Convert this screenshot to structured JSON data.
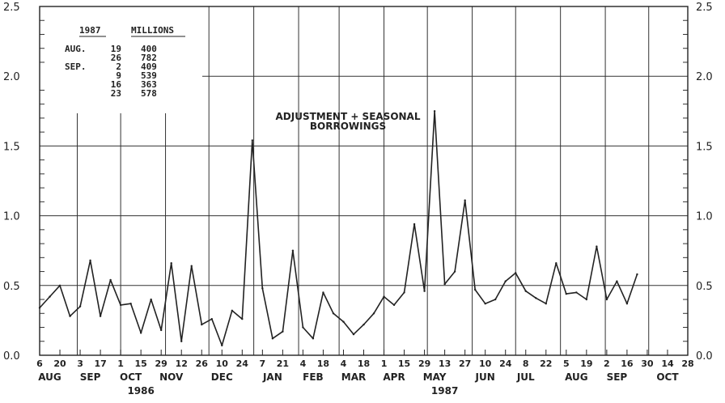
{
  "chart_data": {
    "type": "line",
    "title": "ADJUSTMENT + SEASONAL BORROWINGS",
    "annotation_lines": [
      "ADJUSTMENT + SEASONAL",
      "BORROWINGS"
    ],
    "ylim": [
      0.0,
      2.5
    ],
    "y_ticks": [
      "0.0",
      "0.5",
      "1.0",
      "1.5",
      "2.0",
      "2.5"
    ],
    "grid": true,
    "x_start": "1986-08-06",
    "x_end": "1987-10-28",
    "day_labels": [
      {
        "date": "1986-08-06",
        "label": "6"
      },
      {
        "date": "1986-08-20",
        "label": "20"
      },
      {
        "date": "1986-09-03",
        "label": "3"
      },
      {
        "date": "1986-09-17",
        "label": "17"
      },
      {
        "date": "1986-10-01",
        "label": "1"
      },
      {
        "date": "1986-10-15",
        "label": "15"
      },
      {
        "date": "1986-10-29",
        "label": "29"
      },
      {
        "date": "1986-11-12",
        "label": "12"
      },
      {
        "date": "1986-11-26",
        "label": "26"
      },
      {
        "date": "1986-12-10",
        "label": "10"
      },
      {
        "date": "1986-12-24",
        "label": "24"
      },
      {
        "date": "1987-01-07",
        "label": "7"
      },
      {
        "date": "1987-01-21",
        "label": "21"
      },
      {
        "date": "1987-02-04",
        "label": "4"
      },
      {
        "date": "1987-02-18",
        "label": "18"
      },
      {
        "date": "1987-03-04",
        "label": "4"
      },
      {
        "date": "1987-03-18",
        "label": "18"
      },
      {
        "date": "1987-04-01",
        "label": "1"
      },
      {
        "date": "1987-04-15",
        "label": "15"
      },
      {
        "date": "1987-04-29",
        "label": "29"
      },
      {
        "date": "1987-05-13",
        "label": "13"
      },
      {
        "date": "1987-05-27",
        "label": "27"
      },
      {
        "date": "1987-06-10",
        "label": "10"
      },
      {
        "date": "1987-06-24",
        "label": "24"
      },
      {
        "date": "1987-07-08",
        "label": "8"
      },
      {
        "date": "1987-07-22",
        "label": "22"
      },
      {
        "date": "1987-08-05",
        "label": "5"
      },
      {
        "date": "1987-08-19",
        "label": "19"
      },
      {
        "date": "1987-09-02",
        "label": "2"
      },
      {
        "date": "1987-09-16",
        "label": "16"
      },
      {
        "date": "1987-09-30",
        "label": "30"
      },
      {
        "date": "1987-10-14",
        "label": "14"
      },
      {
        "date": "1987-10-28",
        "label": "28"
      }
    ],
    "month_labels": [
      {
        "date": "1986-08-13",
        "label": "AUG"
      },
      {
        "date": "1986-09-10",
        "label": "SEP"
      },
      {
        "date": "1986-10-08",
        "label": "OCT"
      },
      {
        "date": "1986-11-05",
        "label": "NOV"
      },
      {
        "date": "1986-12-10",
        "label": "DEC"
      },
      {
        "date": "1987-01-14",
        "label": "JAN"
      },
      {
        "date": "1987-02-11",
        "label": "FEB"
      },
      {
        "date": "1987-03-11",
        "label": "MAR"
      },
      {
        "date": "1987-04-08",
        "label": "APR"
      },
      {
        "date": "1987-05-06",
        "label": "MAY"
      },
      {
        "date": "1987-06-10",
        "label": "JUN"
      },
      {
        "date": "1987-07-08",
        "label": "JUL"
      },
      {
        "date": "1987-08-12",
        "label": "AUG"
      },
      {
        "date": "1987-09-09",
        "label": "SEP"
      },
      {
        "date": "1987-10-14",
        "label": "OCT"
      }
    ],
    "year_labels": [
      {
        "date": "1986-10-15",
        "label": "1986"
      },
      {
        "date": "1987-05-13",
        "label": "1987"
      }
    ],
    "month_boundaries": [
      "1986-09-01",
      "1986-10-01",
      "1986-11-01",
      "1986-12-01",
      "1987-01-01",
      "1987-02-01",
      "1987-03-01",
      "1987-04-01",
      "1987-05-01",
      "1987-06-01",
      "1987-07-01",
      "1987-08-01",
      "1987-09-01",
      "1987-10-01"
    ],
    "series": [
      {
        "x": [
          "1986-08-06",
          "1986-08-13",
          "1986-08-20",
          "1986-08-27",
          "1986-09-03",
          "1986-09-10",
          "1986-09-17",
          "1986-09-24",
          "1986-10-01",
          "1986-10-08",
          "1986-10-15",
          "1986-10-22",
          "1986-10-29",
          "1986-11-05",
          "1986-11-12",
          "1986-11-19",
          "1986-11-26",
          "1986-12-03",
          "1986-12-10",
          "1986-12-17",
          "1986-12-24",
          "1986-12-31",
          "1987-01-07",
          "1987-01-14",
          "1987-01-21",
          "1987-01-28",
          "1987-02-04",
          "1987-02-11",
          "1987-02-18",
          "1987-02-25",
          "1987-03-04",
          "1987-03-11",
          "1987-03-18",
          "1987-03-25",
          "1987-04-01",
          "1987-04-08",
          "1987-04-15",
          "1987-04-22",
          "1987-04-29",
          "1987-05-06",
          "1987-05-13",
          "1987-05-20",
          "1987-05-27",
          "1987-06-03",
          "1987-06-10",
          "1987-06-17",
          "1987-06-24",
          "1987-07-01",
          "1987-07-08",
          "1987-07-15",
          "1987-07-22",
          "1987-07-29",
          "1987-08-05",
          "1987-08-12",
          "1987-08-19",
          "1987-08-26",
          "1987-09-02",
          "1987-09-09",
          "1987-09-16",
          "1987-09-23"
        ],
        "y": [
          0.34,
          0.42,
          0.5,
          0.28,
          0.35,
          0.68,
          0.28,
          0.54,
          0.36,
          0.37,
          0.16,
          0.4,
          0.18,
          0.66,
          0.1,
          0.64,
          0.22,
          0.26,
          0.07,
          0.32,
          0.26,
          1.54,
          0.48,
          0.12,
          0.17,
          0.75,
          0.2,
          0.12,
          0.45,
          0.3,
          0.24,
          0.15,
          0.22,
          0.3,
          0.42,
          0.36,
          0.45,
          0.94,
          0.46,
          1.75,
          0.51,
          0.6,
          1.11,
          0.47,
          0.37,
          0.4,
          0.53,
          0.59,
          0.46,
          0.41,
          0.37,
          0.66,
          0.44,
          0.45,
          0.4,
          0.78,
          0.4,
          0.53,
          0.37,
          0.58
        ]
      }
    ]
  },
  "table": {
    "title": "1987",
    "unit": "MILLIONS",
    "rows": [
      {
        "month": "AUG.",
        "day": "19",
        "value": "400"
      },
      {
        "month": "",
        "day": "26",
        "value": "782"
      },
      {
        "month": "SEP.",
        "day": "2",
        "value": "409"
      },
      {
        "month": "",
        "day": "9",
        "value": "539"
      },
      {
        "month": "",
        "day": "16",
        "value": "363"
      },
      {
        "month": "",
        "day": "23",
        "value": "578"
      }
    ]
  }
}
